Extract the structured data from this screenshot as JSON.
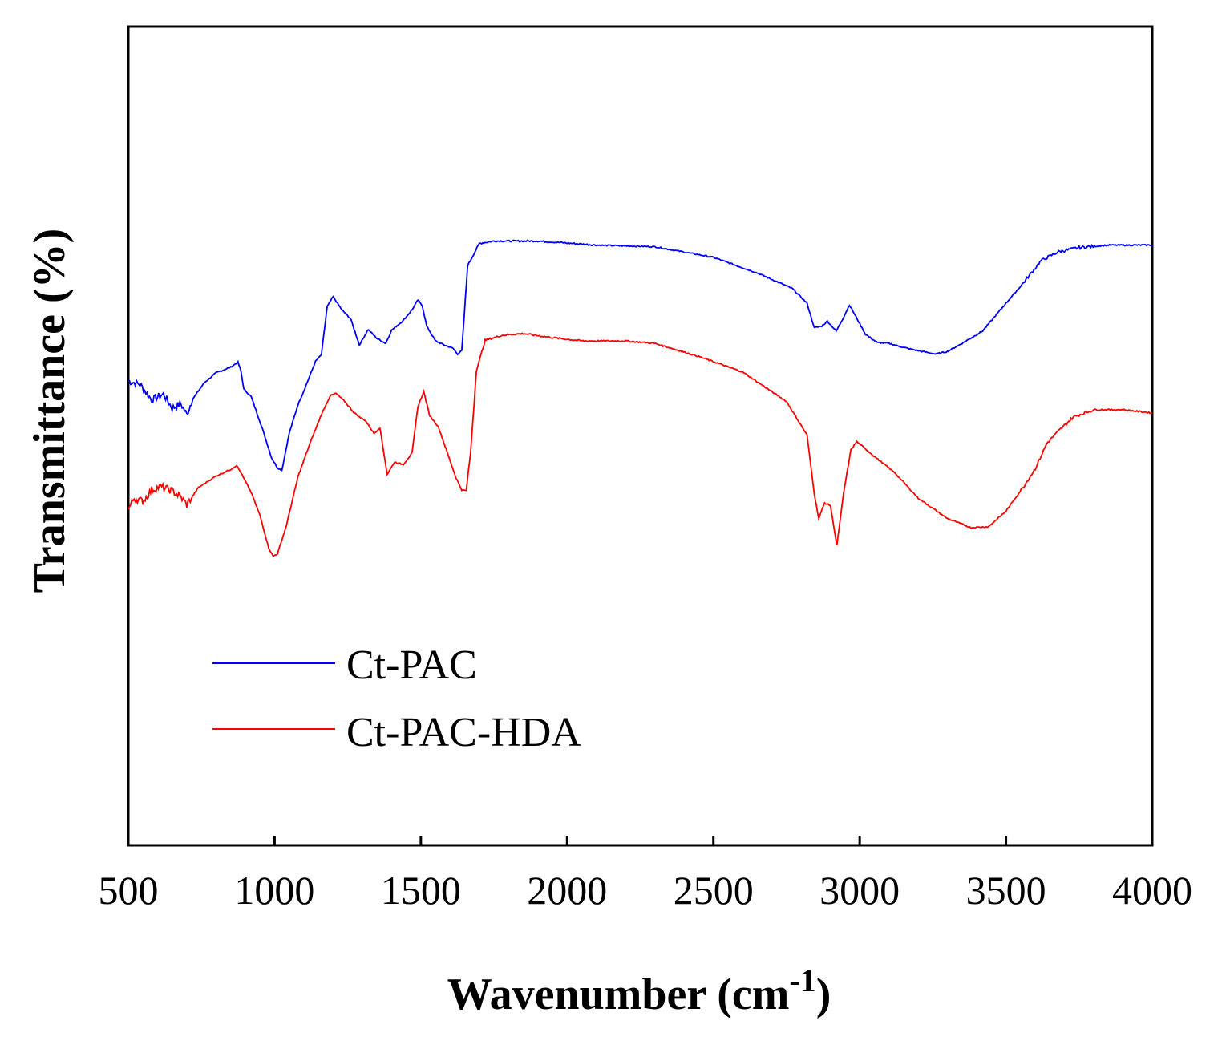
{
  "chart_data": {
    "type": "line",
    "title": "",
    "xlabel": "Wavenumber (cm",
    "xlabel_sup": "-1",
    "xlabel_close": ")",
    "ylabel": "Transmittance (%)",
    "xlim": [
      500,
      4000
    ],
    "ylim": [
      0,
      100
    ],
    "xticks": [
      "500",
      "1000",
      "1500",
      "2000",
      "2500",
      "3000",
      "3500",
      "4000"
    ],
    "legend_position": "lower-left",
    "series": [
      {
        "name": "Ct-PAC",
        "color": "#0000ff",
        "points": [
          [
            500,
            56.7
          ],
          [
            540,
            56.3
          ],
          [
            580,
            54.4
          ],
          [
            620,
            55.1
          ],
          [
            650,
            53.4
          ],
          [
            680,
            53.9
          ],
          [
            700,
            52.6
          ],
          [
            720,
            54.5
          ],
          [
            760,
            56.5
          ],
          [
            800,
            57.7
          ],
          [
            850,
            58.4
          ],
          [
            875,
            59.0
          ],
          [
            885,
            57.9
          ],
          [
            895,
            55.7
          ],
          [
            920,
            54.8
          ],
          [
            960,
            50.7
          ],
          [
            990,
            47.3
          ],
          [
            1010,
            46.1
          ],
          [
            1025,
            45.8
          ],
          [
            1050,
            50.3
          ],
          [
            1080,
            53.8
          ],
          [
            1100,
            55.5
          ],
          [
            1140,
            59.1
          ],
          [
            1160,
            59.9
          ],
          [
            1180,
            65.8
          ],
          [
            1200,
            67.0
          ],
          [
            1230,
            65.4
          ],
          [
            1260,
            64.3
          ],
          [
            1290,
            61.1
          ],
          [
            1320,
            63.0
          ],
          [
            1350,
            61.9
          ],
          [
            1380,
            61.3
          ],
          [
            1400,
            62.9
          ],
          [
            1440,
            64.1
          ],
          [
            1470,
            65.4
          ],
          [
            1490,
            66.6
          ],
          [
            1505,
            65.9
          ],
          [
            1520,
            63.4
          ],
          [
            1550,
            61.6
          ],
          [
            1580,
            61.1
          ],
          [
            1610,
            60.7
          ],
          [
            1625,
            60.0
          ],
          [
            1640,
            60.4
          ],
          [
            1660,
            70.8
          ],
          [
            1700,
            73.5
          ],
          [
            1750,
            73.8
          ],
          [
            1900,
            73.8
          ],
          [
            2100,
            73.3
          ],
          [
            2300,
            73.1
          ],
          [
            2500,
            71.8
          ],
          [
            2650,
            69.9
          ],
          [
            2770,
            68.0
          ],
          [
            2820,
            66.2
          ],
          [
            2845,
            63.2
          ],
          [
            2870,
            63.4
          ],
          [
            2890,
            64.0
          ],
          [
            2920,
            62.8
          ],
          [
            2945,
            64.5
          ],
          [
            2965,
            66.0
          ],
          [
            2985,
            64.7
          ],
          [
            3020,
            62.4
          ],
          [
            3060,
            61.4
          ],
          [
            3100,
            61.3
          ],
          [
            3150,
            60.8
          ],
          [
            3200,
            60.4
          ],
          [
            3260,
            60.0
          ],
          [
            3300,
            60.3
          ],
          [
            3350,
            61.3
          ],
          [
            3420,
            62.8
          ],
          [
            3500,
            66.2
          ],
          [
            3560,
            68.7
          ],
          [
            3620,
            71.4
          ],
          [
            3680,
            72.5
          ],
          [
            3750,
            73.0
          ],
          [
            3850,
            73.3
          ],
          [
            4000,
            73.3
          ]
        ]
      },
      {
        "name": "Ct-PAC-HDA",
        "color": "#ff0000",
        "points": [
          [
            500,
            41.0
          ],
          [
            520,
            42.4
          ],
          [
            550,
            42.0
          ],
          [
            580,
            43.4
          ],
          [
            610,
            43.8
          ],
          [
            650,
            43.3
          ],
          [
            680,
            42.5
          ],
          [
            700,
            41.6
          ],
          [
            740,
            43.7
          ],
          [
            800,
            45.1
          ],
          [
            850,
            45.9
          ],
          [
            870,
            46.4
          ],
          [
            885,
            45.5
          ],
          [
            920,
            43.1
          ],
          [
            950,
            40.3
          ],
          [
            980,
            36.3
          ],
          [
            995,
            35.3
          ],
          [
            1010,
            35.6
          ],
          [
            1040,
            39.0
          ],
          [
            1080,
            45.0
          ],
          [
            1120,
            49.0
          ],
          [
            1160,
            52.6
          ],
          [
            1190,
            54.9
          ],
          [
            1210,
            55.2
          ],
          [
            1240,
            54.2
          ],
          [
            1270,
            52.9
          ],
          [
            1290,
            52.3
          ],
          [
            1310,
            51.9
          ],
          [
            1340,
            50.3
          ],
          [
            1360,
            51.0
          ],
          [
            1385,
            45.3
          ],
          [
            1410,
            46.8
          ],
          [
            1440,
            46.5
          ],
          [
            1470,
            47.9
          ],
          [
            1490,
            53.6
          ],
          [
            1510,
            55.4
          ],
          [
            1530,
            52.5
          ],
          [
            1560,
            51.1
          ],
          [
            1590,
            48.0
          ],
          [
            1620,
            44.9
          ],
          [
            1640,
            43.4
          ],
          [
            1655,
            43.3
          ],
          [
            1670,
            47.9
          ],
          [
            1690,
            58.0
          ],
          [
            1720,
            61.7
          ],
          [
            1780,
            62.3
          ],
          [
            1850,
            62.5
          ],
          [
            1950,
            62.0
          ],
          [
            2050,
            61.6
          ],
          [
            2200,
            61.6
          ],
          [
            2300,
            61.3
          ],
          [
            2450,
            59.7
          ],
          [
            2600,
            57.8
          ],
          [
            2750,
            54.2
          ],
          [
            2820,
            50.1
          ],
          [
            2845,
            42.9
          ],
          [
            2860,
            39.9
          ],
          [
            2880,
            41.8
          ],
          [
            2900,
            41.5
          ],
          [
            2922,
            36.6
          ],
          [
            2945,
            43.0
          ],
          [
            2970,
            48.3
          ],
          [
            2990,
            49.3
          ],
          [
            3050,
            47.5
          ],
          [
            3120,
            45.5
          ],
          [
            3200,
            42.4
          ],
          [
            3300,
            39.9
          ],
          [
            3380,
            38.8
          ],
          [
            3440,
            38.9
          ],
          [
            3500,
            40.8
          ],
          [
            3560,
            43.8
          ],
          [
            3600,
            46.0
          ],
          [
            3640,
            49.1
          ],
          [
            3680,
            50.6
          ],
          [
            3730,
            52.3
          ],
          [
            3800,
            53.2
          ],
          [
            3900,
            53.2
          ],
          [
            4000,
            52.8
          ]
        ]
      }
    ]
  },
  "legend": {
    "items": [
      {
        "label": "Ct-PAC",
        "color": "#0000ff"
      },
      {
        "label": "Ct-PAC-HDA",
        "color": "#ff0000"
      }
    ]
  }
}
